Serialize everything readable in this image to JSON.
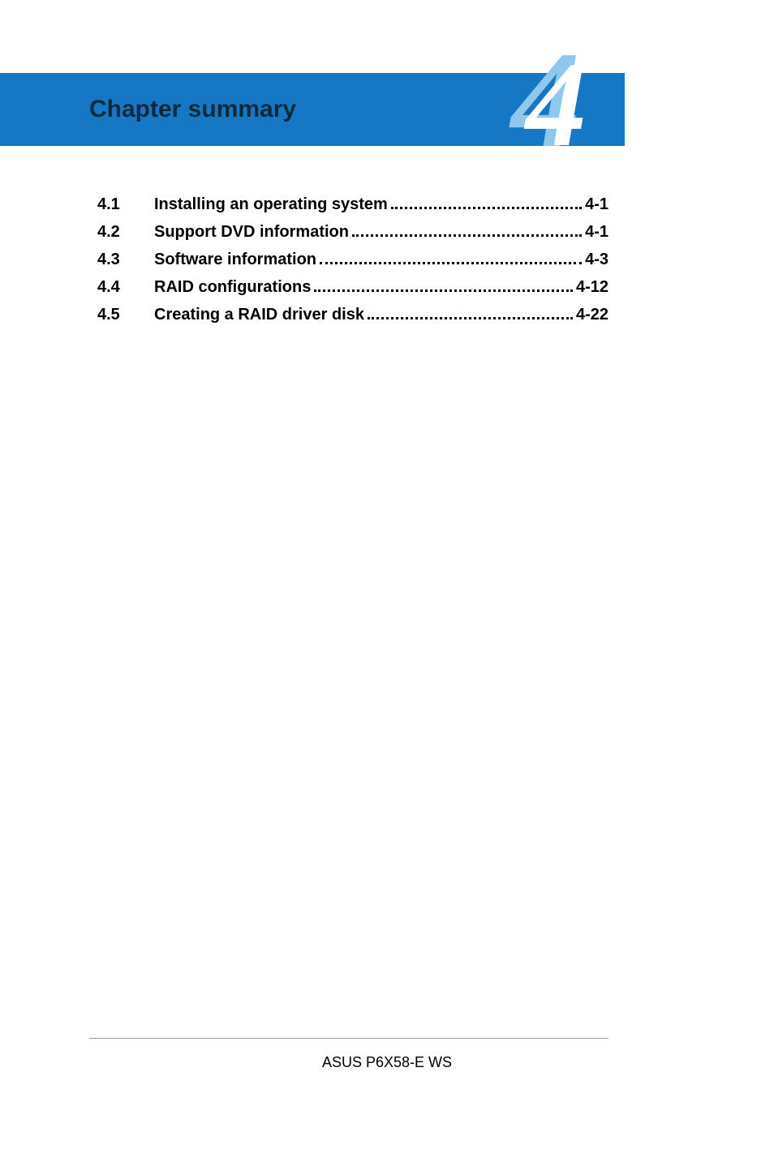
{
  "header": {
    "title": "Chapter summary",
    "chapter_number": "4",
    "band_color": "#1678c4",
    "title_color": "#0e2a3a",
    "big_num_back_color": "#8fc8ec",
    "big_num_front_color": "#ffffff"
  },
  "toc": {
    "font_weight": "bold",
    "font_size_pt": 15,
    "text_color": "#000000",
    "items": [
      {
        "num": "4.1",
        "label": "Installing an operating system",
        "page": "4-1"
      },
      {
        "num": "4.2",
        "label": "Support DVD information",
        "page": "4-1"
      },
      {
        "num": "4.3",
        "label": "Software information",
        "page": "4-3"
      },
      {
        "num": "4.4",
        "label": "RAID configurations",
        "page": "4-12"
      },
      {
        "num": "4.5",
        "label": "Creating a RAID driver disk",
        "page": "4-22"
      }
    ]
  },
  "footer": {
    "text": "ASUS P6X58-E WS",
    "rule_color": "#999999"
  }
}
